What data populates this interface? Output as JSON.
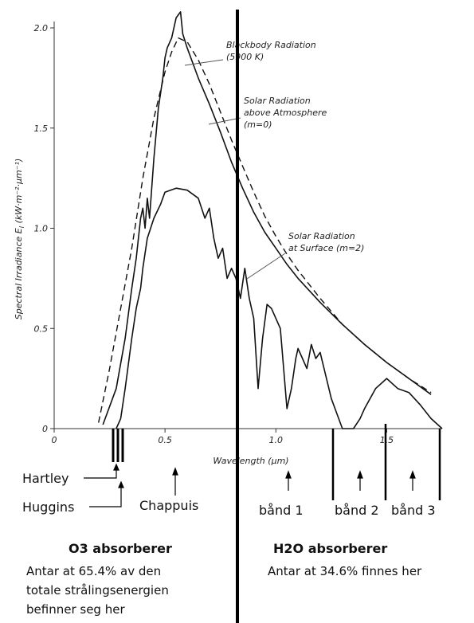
{
  "chart_data": {
    "type": "line",
    "title": "",
    "xlabel": "Wavelength (μm)",
    "ylabel": "Spectral Irradiance E",
    "ylabel_sub": "I",
    "ylabel_units": "(kW·m⁻²·μm⁻¹)",
    "xlim": [
      0,
      1.75
    ],
    "ylim": [
      0,
      2.0
    ],
    "x_ticks": [
      {
        "value": 0,
        "label": "0"
      },
      {
        "value": 0.5,
        "label": "0.5"
      },
      {
        "value": 1.0,
        "label": "1.0"
      },
      {
        "value": 1.5,
        "label": "1.5"
      }
    ],
    "y_ticks": [
      {
        "value": 0,
        "label": "0"
      },
      {
        "value": 0.5,
        "label": "0.5"
      },
      {
        "value": 1.0,
        "label": "1.0"
      },
      {
        "value": 1.5,
        "label": "1.5"
      },
      {
        "value": 2.0,
        "label": "2.0"
      }
    ],
    "series": [
      {
        "key": "blackbody",
        "style": "dashed",
        "x": [
          0.2,
          0.25,
          0.3,
          0.35,
          0.4,
          0.45,
          0.5,
          0.53,
          0.56,
          0.6,
          0.65,
          0.7,
          0.75,
          0.8,
          0.85,
          0.9,
          0.95,
          1.0,
          1.05,
          1.1,
          1.15,
          1.2,
          1.3,
          1.4,
          1.5,
          1.6,
          1.7
        ],
        "y": [
          0.03,
          0.3,
          0.6,
          0.9,
          1.25,
          1.55,
          1.78,
          1.88,
          1.95,
          1.93,
          1.84,
          1.72,
          1.58,
          1.44,
          1.31,
          1.18,
          1.06,
          0.96,
          0.87,
          0.79,
          0.72,
          0.65,
          0.52,
          0.42,
          0.33,
          0.25,
          0.18
        ]
      },
      {
        "key": "solar_above",
        "style": "solid",
        "x": [
          0.22,
          0.28,
          0.32,
          0.35,
          0.37,
          0.39,
          0.4,
          0.41,
          0.42,
          0.43,
          0.45,
          0.47,
          0.49,
          0.5,
          0.51,
          0.53,
          0.55,
          0.57,
          0.58,
          0.6,
          0.65,
          0.7,
          0.75,
          0.8,
          0.85,
          0.9,
          0.95,
          1.0,
          1.05,
          1.1,
          1.2,
          1.3,
          1.4,
          1.5,
          1.6,
          1.7
        ],
        "y": [
          0.02,
          0.2,
          0.45,
          0.7,
          0.85,
          1.05,
          1.1,
          1.0,
          1.15,
          1.05,
          1.35,
          1.6,
          1.75,
          1.85,
          1.9,
          1.95,
          2.05,
          2.08,
          1.97,
          1.9,
          1.75,
          1.62,
          1.48,
          1.33,
          1.2,
          1.08,
          0.98,
          0.9,
          0.82,
          0.75,
          0.63,
          0.52,
          0.42,
          0.33,
          0.25,
          0.17
        ]
      },
      {
        "key": "solar_surface",
        "style": "solid",
        "x": [
          0.28,
          0.3,
          0.32,
          0.35,
          0.37,
          0.39,
          0.4,
          0.42,
          0.45,
          0.48,
          0.5,
          0.55,
          0.6,
          0.65,
          0.68,
          0.7,
          0.72,
          0.74,
          0.76,
          0.78,
          0.8,
          0.82,
          0.84,
          0.86,
          0.88,
          0.9,
          0.92,
          0.94,
          0.96,
          0.98,
          1.0,
          1.02,
          1.05,
          1.07,
          1.09,
          1.1,
          1.12,
          1.14,
          1.16,
          1.18,
          1.2,
          1.25,
          1.3,
          1.35,
          1.38,
          1.4,
          1.45,
          1.5,
          1.55,
          1.6,
          1.65,
          1.7,
          1.75
        ],
        "y": [
          0.0,
          0.05,
          0.2,
          0.45,
          0.6,
          0.7,
          0.8,
          0.95,
          1.05,
          1.12,
          1.18,
          1.2,
          1.19,
          1.15,
          1.05,
          1.1,
          0.95,
          0.85,
          0.9,
          0.75,
          0.8,
          0.75,
          0.65,
          0.8,
          0.65,
          0.55,
          0.2,
          0.45,
          0.62,
          0.6,
          0.55,
          0.5,
          0.1,
          0.2,
          0.35,
          0.4,
          0.35,
          0.3,
          0.42,
          0.35,
          0.38,
          0.15,
          0.0,
          0.0,
          0.05,
          0.1,
          0.2,
          0.25,
          0.2,
          0.18,
          0.12,
          0.05,
          0.0
        ]
      }
    ],
    "annotations": [
      {
        "key": "bb",
        "lines": [
          "Blackbody Radiation",
          "(5900 K)"
        ]
      },
      {
        "key": "above",
        "lines": [
          "Solar Radiation",
          "above Atmosphere",
          "(m=0)"
        ]
      },
      {
        "key": "surface",
        "lines": [
          "Solar Radiation",
          "at Surface (m=2)"
        ]
      }
    ]
  },
  "absorption": {
    "hartley": "Hartley",
    "huggins": "Huggins",
    "chappuis": "Chappuis",
    "band1": "bånd 1",
    "band2": "bånd 2",
    "band3": "bånd 3"
  },
  "summary": {
    "o3_heading": "O3 absorberer",
    "o3_lines": [
      "Antar at 65.4% av den",
      "totale strålingsenergien",
      "befinner seg her"
    ],
    "h2o_heading": "H2O absorberer",
    "h2o_line": "Antar at 34.6% finnes her"
  }
}
